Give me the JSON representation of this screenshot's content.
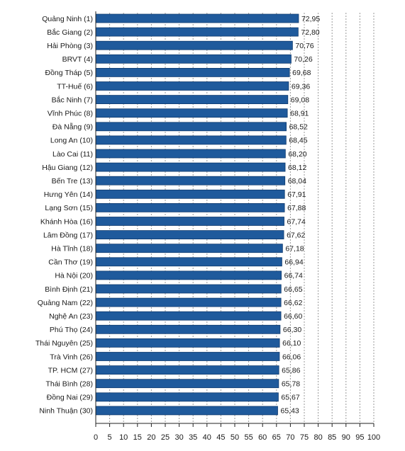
{
  "chart_data": {
    "type": "bar",
    "orientation": "horizontal",
    "categories": [
      "Quảng Ninh (1)",
      "Bắc Giang (2)",
      "Hải Phòng (3)",
      "BRVT (4)",
      "Đồng Tháp (5)",
      "TT-Huế (6)",
      "Bắc Ninh (7)",
      "Vĩnh Phúc (8)",
      "Đà Nẵng (9)",
      "Long An (10)",
      "Lào Cai (11)",
      "Hậu Giang (12)",
      "Bến Tre (13)",
      "Hưng Yên (14)",
      "Lạng Sơn (15)",
      "Khánh Hòa (16)",
      "Lâm Đồng (17)",
      "Hà Tĩnh (18)",
      "Cần Thơ (19)",
      "Hà Nội (20)",
      "Bình Định (21)",
      "Quảng Nam (22)",
      "Nghệ An (23)",
      "Phú Thọ (24)",
      "Thái Nguyên (25)",
      "Trà Vinh (26)",
      "TP. HCM (27)",
      "Thái Bình (28)",
      "Đồng Nai (29)",
      "Ninh Thuận (30)"
    ],
    "values": [
      72.95,
      72.8,
      70.76,
      70.26,
      69.68,
      69.36,
      69.08,
      68.91,
      68.52,
      68.45,
      68.2,
      68.12,
      68.04,
      67.91,
      67.88,
      67.74,
      67.62,
      67.18,
      66.94,
      66.74,
      66.65,
      66.62,
      66.6,
      66.3,
      66.1,
      66.06,
      65.86,
      65.78,
      65.67,
      65.43
    ],
    "value_labels": [
      "72,95",
      "72,80",
      "70,76",
      "70,26",
      "69,68",
      "69,36",
      "69,08",
      "68,91",
      "68,52",
      "68,45",
      "68,20",
      "68,12",
      "68,04",
      "67,91",
      "67,88",
      "67,74",
      "67,62",
      "67,18",
      "66,94",
      "66,74",
      "66,65",
      "66,62",
      "66,60",
      "66,30",
      "66,10",
      "66,06",
      "65,86",
      "65,78",
      "65,67",
      "65,43"
    ],
    "xlim": [
      0,
      100
    ],
    "x_ticks": [
      "0",
      "5",
      "10",
      "15",
      "20",
      "25",
      "30",
      "35",
      "40",
      "45",
      "50",
      "55",
      "60",
      "65",
      "70",
      "75",
      "80",
      "85",
      "90",
      "95",
      "100"
    ],
    "grid": "vertical-dashed",
    "colors": {
      "bar": "#1f5a9c",
      "bar_edge": "#0f3a6e",
      "grid": "#9a9a9a",
      "axis": "#222222"
    },
    "title": "",
    "xlabel": "",
    "ylabel": ""
  }
}
